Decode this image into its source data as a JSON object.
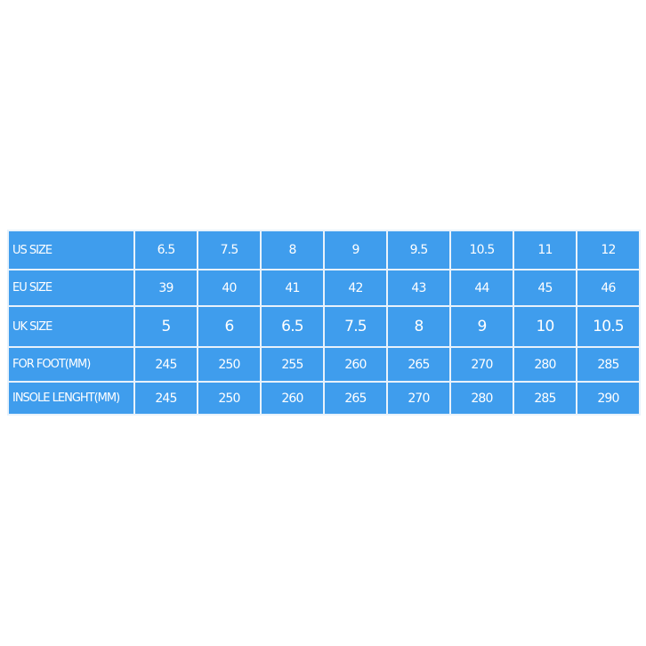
{
  "table": {
    "rows": [
      [
        "US SIZE",
        "6.5",
        "7.5",
        "8",
        "9",
        "9.5",
        "10.5",
        "11",
        "12"
      ],
      [
        "EU SIZE",
        "39",
        "40",
        "41",
        "42",
        "43",
        "44",
        "45",
        "46"
      ],
      [
        "UK SIZE",
        "5",
        "6",
        "6.5",
        "7.5",
        "8",
        "9",
        "10",
        "10.5"
      ],
      [
        "FOR FOOT(MM)",
        "245",
        "250",
        "255",
        "260",
        "265",
        "270",
        "280",
        "285"
      ],
      [
        "INSOLE LENGHT(MM)",
        "245",
        "250",
        "260",
        "265",
        "270",
        "280",
        "285",
        "290"
      ]
    ]
  }
}
